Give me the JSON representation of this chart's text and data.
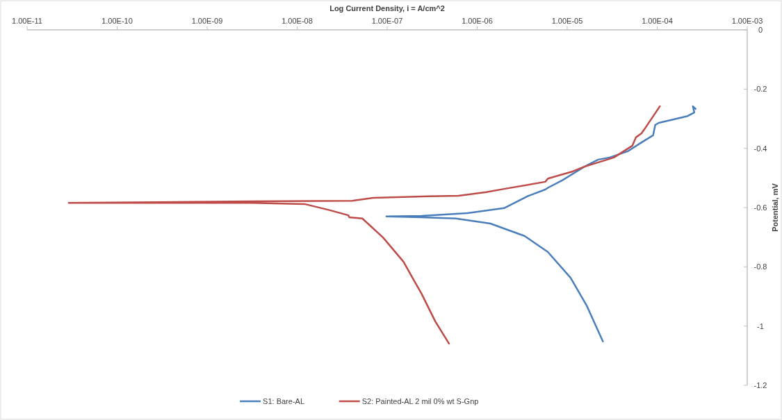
{
  "chart_data": {
    "type": "line",
    "title": "Log Current Density, i = A/cm^2",
    "ylabel": "Potential, mV",
    "log": "x",
    "grid": false,
    "legend": "bottom",
    "line_style": "solid",
    "marker": "none",
    "xlim": [
      1e-11,
      0.001
    ],
    "xticks": [
      {
        "value": 1e-11,
        "label": "1.00E-11"
      },
      {
        "value": 1e-10,
        "label": "1.00E-10"
      },
      {
        "value": 1e-09,
        "label": "1.00E-09"
      },
      {
        "value": 1e-08,
        "label": "1.00E-08"
      },
      {
        "value": 1e-07,
        "label": "1.00E-07"
      },
      {
        "value": 1e-06,
        "label": "1.00E-06"
      },
      {
        "value": 1e-05,
        "label": "1.00E-05"
      },
      {
        "value": 0.0001,
        "label": "1.00E-04"
      },
      {
        "value": 0.001,
        "label": "1.00E-03"
      }
    ],
    "ylim": [
      -1.2,
      0
    ],
    "yticks": [
      -1.2,
      -1,
      -0.8,
      -0.6,
      -0.4,
      -0.2,
      0
    ],
    "series": [
      {
        "name": "S1: Bare-AL",
        "color": "#4a7ebb",
        "x": [
          2.49e-05,
          1.64e-05,
          1.09e-05,
          6.1e-06,
          3.37e-06,
          1.4e-06,
          5.8e-07,
          2.41e-07,
          9.8e-08,
          2.41e-07,
          7.8e-07,
          1.99e-06,
          3.6e-06,
          5.7e-06,
          6.2e-06,
          8.7e-06,
          1.55e-05,
          2.21e-05,
          2.97e-05,
          4.7e-05,
          6.7e-05,
          9e-05,
          9.5e-05,
          0.000104,
          0.000217,
          0.000258,
          0.000249,
          0.000267
        ],
        "values": [
          -1.052,
          -0.93,
          -0.837,
          -0.75,
          -0.696,
          -0.654,
          -0.637,
          -0.633,
          -0.63,
          -0.628,
          -0.619,
          -0.602,
          -0.562,
          -0.539,
          -0.532,
          -0.509,
          -0.462,
          -0.438,
          -0.431,
          -0.41,
          -0.38,
          -0.356,
          -0.321,
          -0.314,
          -0.291,
          -0.279,
          -0.258,
          -0.267
        ]
      },
      {
        "name": "S2: Painted-AL 2 mil 0% wt S-Gnp",
        "color": "#be4b48",
        "x": [
          4.86e-07,
          3.42e-07,
          2.41e-07,
          1.91e-07,
          1.52e-07,
          9e-08,
          5.3e-08,
          3.8e-08,
          3.7e-08,
          2.32e-08,
          1.21e-08,
          3.1e-09,
          2.9e-11,
          3.1e-09,
          4.1e-08,
          7e-08,
          2.87e-07,
          6.2e-07,
          1.26e-06,
          1.99e-06,
          5.7e-06,
          6.1e-06,
          1.15e-05,
          1.55e-05,
          3.3e-05,
          5.3e-05,
          5.8e-05,
          6.7e-05,
          7.3e-05,
          0.000107
        ],
        "values": [
          -1.059,
          -0.984,
          -0.891,
          -0.837,
          -0.783,
          -0.701,
          -0.637,
          -0.633,
          -0.626,
          -0.609,
          -0.588,
          -0.584,
          -0.584,
          -0.579,
          -0.577,
          -0.567,
          -0.562,
          -0.56,
          -0.548,
          -0.537,
          -0.513,
          -0.502,
          -0.478,
          -0.462,
          -0.431,
          -0.391,
          -0.363,
          -0.349,
          -0.333,
          -0.258
        ]
      }
    ]
  }
}
